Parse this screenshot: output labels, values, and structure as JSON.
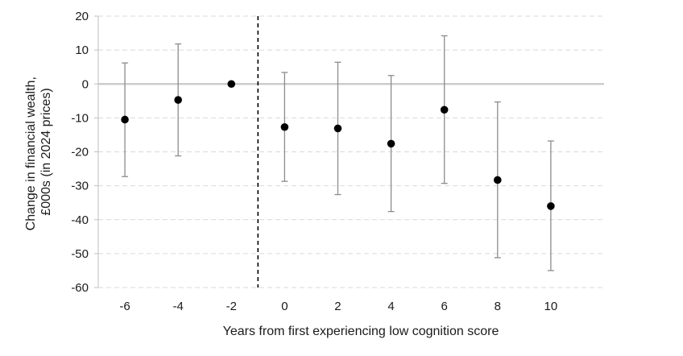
{
  "chart_data": {
    "type": "scatter",
    "subtype": "point-estimate-with-confidence-intervals",
    "xlabel": "Years from first experiencing low cognition score",
    "ylabel_lines": [
      "Change in financial wealth,",
      "£000s (in 2024 prices)"
    ],
    "categories": [
      "-6",
      "-4",
      "-2",
      "0",
      "2",
      "4",
      "6",
      "8",
      "10"
    ],
    "points": [
      {
        "x": "-6",
        "y": -10.5,
        "lower": -27.3,
        "upper": 6.2
      },
      {
        "x": "-4",
        "y": -4.7,
        "lower": -21.2,
        "upper": 11.8
      },
      {
        "x": "-2",
        "y": 0,
        "lower": null,
        "upper": null
      },
      {
        "x": "0",
        "y": -12.7,
        "lower": -28.7,
        "upper": 3.4
      },
      {
        "x": "2",
        "y": -13.1,
        "lower": -32.6,
        "upper": 6.4
      },
      {
        "x": "4",
        "y": -17.6,
        "lower": -37.6,
        "upper": 2.5
      },
      {
        "x": "6",
        "y": -7.6,
        "lower": -29.3,
        "upper": 14.2
      },
      {
        "x": "8",
        "y": -28.3,
        "lower": -51.2,
        "upper": -5.3
      },
      {
        "x": "10",
        "y": -36.0,
        "lower": -55.0,
        "upper": -16.8
      }
    ],
    "ylim": [
      -60,
      20
    ],
    "yticks": [
      20,
      10,
      0,
      -10,
      -20,
      -30,
      -40,
      -50,
      -60
    ],
    "grid": "horizontal-dashed",
    "reference_line": {
      "axis": "x",
      "between": [
        "-2",
        "0"
      ],
      "style": "dashed"
    },
    "zero_line": true,
    "colors": {
      "marker": "#000000",
      "errorbar": "#8c8c8c",
      "grid": "#d9d9d9",
      "zero_line": "#c8c8c8",
      "reference_line": "#000000"
    }
  }
}
